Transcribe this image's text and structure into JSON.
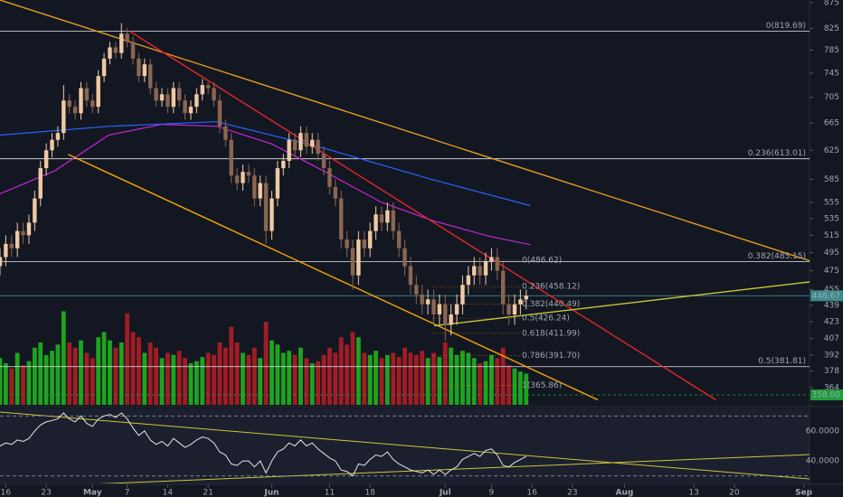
{
  "chart_data": {
    "type": "candlestick",
    "log_scale": true,
    "x": [
      15,
      16,
      17,
      18,
      19,
      20,
      21,
      22,
      23,
      24,
      25,
      26,
      27,
      28,
      29,
      30,
      31,
      32,
      33,
      34,
      35,
      36,
      37,
      38,
      39,
      40,
      41,
      42,
      43,
      44,
      45,
      46,
      47,
      48,
      49,
      50,
      51,
      52,
      53,
      54,
      55,
      56,
      57,
      58,
      59,
      60,
      61,
      62,
      63,
      64,
      65,
      66,
      67,
      68,
      69,
      70,
      71,
      72,
      73,
      74,
      75,
      76,
      77,
      78,
      79,
      80,
      81,
      82,
      83,
      84,
      85,
      86,
      87,
      88,
      89,
      90,
      91,
      92,
      93,
      94,
      95,
      96,
      97,
      98,
      99,
      100,
      101,
      102,
      103,
      104,
      105,
      106
    ],
    "open": [
      480,
      490,
      505,
      500,
      520,
      515,
      530,
      560,
      600,
      625,
      640,
      650,
      700,
      690,
      680,
      720,
      700,
      690,
      740,
      770,
      790,
      780,
      815,
      800,
      770,
      740,
      760,
      720,
      700,
      710,
      690,
      720,
      700,
      680,
      690,
      710,
      725,
      720,
      700,
      660,
      640,
      590,
      580,
      595,
      590,
      560,
      580,
      520,
      560,
      600,
      610,
      640,
      625,
      650,
      630,
      640,
      620,
      600,
      575,
      560,
      510,
      500,
      470,
      510,
      500,
      520,
      540,
      530,
      545,
      520,
      500,
      480,
      460,
      450,
      440,
      445,
      430,
      440,
      420,
      430,
      440,
      460,
      470,
      480,
      470,
      485,
      490,
      475,
      440,
      430,
      440,
      445
    ],
    "high": [
      500,
      515,
      515,
      530,
      530,
      540,
      570,
      610,
      635,
      650,
      660,
      725,
      710,
      700,
      730,
      730,
      710,
      750,
      780,
      800,
      800,
      835,
      825,
      810,
      780,
      770,
      770,
      730,
      720,
      720,
      730,
      730,
      710,
      700,
      720,
      735,
      730,
      730,
      710,
      670,
      650,
      600,
      605,
      605,
      600,
      590,
      590,
      570,
      610,
      620,
      650,
      650,
      660,
      660,
      650,
      650,
      630,
      610,
      585,
      570,
      520,
      510,
      520,
      520,
      530,
      550,
      550,
      555,
      555,
      530,
      510,
      490,
      470,
      460,
      455,
      455,
      450,
      450,
      440,
      450,
      470,
      480,
      490,
      490,
      495,
      500,
      500,
      485,
      450,
      450,
      455,
      455
    ],
    "low": [
      470,
      480,
      490,
      490,
      505,
      505,
      520,
      550,
      590,
      615,
      630,
      640,
      680,
      670,
      670,
      690,
      680,
      680,
      730,
      760,
      770,
      770,
      790,
      760,
      730,
      730,
      710,
      690,
      690,
      680,
      680,
      690,
      670,
      670,
      680,
      700,
      710,
      690,
      650,
      630,
      580,
      570,
      570,
      580,
      550,
      550,
      505,
      510,
      550,
      590,
      600,
      615,
      615,
      620,
      620,
      610,
      590,
      565,
      550,
      500,
      490,
      455,
      460,
      490,
      490,
      510,
      520,
      520,
      510,
      490,
      470,
      450,
      440,
      430,
      430,
      420,
      420,
      405,
      410,
      420,
      430,
      450,
      460,
      460,
      460,
      475,
      465,
      430,
      420,
      420,
      430,
      435
    ],
    "close": [
      490,
      505,
      500,
      520,
      515,
      530,
      560,
      600,
      625,
      640,
      650,
      700,
      690,
      680,
      720,
      700,
      690,
      740,
      770,
      790,
      780,
      815,
      800,
      770,
      740,
      760,
      720,
      700,
      710,
      690,
      720,
      700,
      680,
      690,
      710,
      725,
      720,
      700,
      660,
      640,
      590,
      580,
      595,
      590,
      560,
      580,
      520,
      560,
      600,
      610,
      640,
      625,
      650,
      630,
      640,
      620,
      600,
      575,
      560,
      510,
      500,
      470,
      510,
      500,
      520,
      540,
      530,
      545,
      520,
      500,
      480,
      460,
      450,
      440,
      445,
      430,
      440,
      420,
      430,
      440,
      460,
      470,
      480,
      470,
      485,
      490,
      475,
      440,
      430,
      440,
      445,
      448.67
    ],
    "up_color": "#efc9a4",
    "down_color": "#8a6650",
    "xlim": [
      15,
      155
    ],
    "xticks": [
      16,
      23,
      {
        "value": 31,
        "label": "May"
      },
      {
        "value": 37,
        "label": "7"
      },
      {
        "value": 44,
        "label": "14"
      },
      {
        "value": 51,
        "label": "21"
      },
      {
        "value": 62,
        "label": "Jun"
      },
      {
        "value": 72,
        "label": "11"
      },
      {
        "value": 79,
        "label": "18"
      },
      {
        "value": 92,
        "label": "Jul"
      },
      {
        "value": 100,
        "label": "9"
      },
      {
        "value": 107,
        "label": "16"
      },
      {
        "value": 114,
        "label": "23"
      },
      {
        "value": 123,
        "label": "Aug"
      },
      {
        "value": 135,
        "label": "13"
      },
      {
        "value": 142,
        "label": "20"
      },
      {
        "value": 154,
        "label": "Sep"
      }
    ],
    "ylim": [
      350,
      880
    ],
    "yticks": [
      875,
      825,
      785,
      745,
      705,
      665,
      625,
      585,
      555,
      535,
      515,
      495,
      475,
      455,
      439,
      423,
      407,
      392,
      378,
      364
    ],
    "volume": {
      "ylim": [
        0,
        100
      ],
      "up_color": "#1fa31f",
      "down_color": "#a11d25",
      "values": [
        45,
        40,
        35,
        50,
        38,
        42,
        55,
        60,
        48,
        52,
        58,
        90,
        60,
        55,
        62,
        50,
        45,
        65,
        70,
        62,
        55,
        60,
        88,
        70,
        65,
        50,
        60,
        55,
        45,
        50,
        48,
        52,
        45,
        40,
        42,
        46,
        50,
        48,
        60,
        55,
        75,
        60,
        50,
        48,
        55,
        45,
        80,
        62,
        58,
        50,
        52,
        48,
        55,
        45,
        40,
        42,
        48,
        55,
        50,
        65,
        58,
        70,
        65,
        50,
        48,
        52,
        45,
        48,
        50,
        46,
        55,
        50,
        48,
        52,
        45,
        50,
        46,
        60,
        55,
        48,
        52,
        50,
        45,
        40,
        42,
        48,
        45,
        55,
        38,
        35,
        32,
        30
      ]
    },
    "overlays": [
      {
        "color": "#c026d3",
        "x": [
          15,
          24.4,
          33.8,
          43,
          52.5,
          62,
          71,
          81,
          90,
          99.5,
          106.7
        ],
        "values": [
          566,
          596,
          647,
          663,
          660,
          634,
          596,
          555,
          532,
          514,
          504
        ]
      },
      {
        "color": "#2962ff",
        "x": [
          15,
          33.8,
          52.5,
          71,
          90,
          106.7
        ],
        "values": [
          647,
          660,
          667,
          628,
          584,
          551
        ]
      }
    ],
    "trend_lines": [
      {
        "color": "#e69b1e",
        "x": [
          15,
          155
        ],
        "values": [
          880,
          486
        ]
      },
      {
        "color": "#e0262b",
        "x": [
          37.4,
          138.8
        ],
        "values": [
          819.7,
          354
        ]
      },
      {
        "color": "#f7a600",
        "x": [
          26.8,
          118.4
        ],
        "values": [
          619,
          354
        ]
      },
      {
        "color": "#c8c83a",
        "x": [
          90.1,
          155
        ],
        "values": [
          419,
          463
        ]
      }
    ],
    "fib": {
      "color": "#e8e8e8",
      "levels": [
        819.69,
        613.01,
        485.15,
        381.81
      ],
      "labels": [
        "0(819.69)",
        "0.236(613.01)",
        "0.382(485.15)",
        "0.5(381.81)"
      ]
    },
    "fib_ext": {
      "color": "#ff9800",
      "levels": [
        486.62,
        458.12,
        440.49,
        426.24,
        411.99,
        391.7,
        365.86
      ],
      "labels": [
        "0(486.62)",
        "0.236(458.12)",
        "0.382(440.49)",
        "0.5(426.24)",
        "0.618(411.99)",
        "0.786(391.70)",
        "1(365.86)"
      ]
    },
    "last_price": {
      "value": 448.67,
      "label": "448.67",
      "color": "#3d8b8b"
    },
    "alert": {
      "value": 358,
      "label": "358.00",
      "color": "#1e9e3c"
    },
    "rsi": {
      "color": "#e6e6e6",
      "ylim": [
        25,
        75
      ],
      "yticks": [
        {
          "value": 60,
          "label": "60.0000"
        },
        {
          "value": 40,
          "label": "40.0000"
        }
      ],
      "levels": [
        70,
        30
      ],
      "values": [
        50,
        52,
        51,
        54,
        53,
        55,
        60,
        64,
        66,
        67,
        68,
        72,
        68,
        66,
        70,
        65,
        63,
        68,
        70,
        71,
        69,
        72,
        68,
        62,
        57,
        60,
        54,
        51,
        53,
        50,
        55,
        52,
        49,
        51,
        54,
        56,
        55,
        52,
        46,
        44,
        38,
        37,
        40,
        40,
        36,
        40,
        32,
        40,
        46,
        48,
        52,
        50,
        54,
        50,
        52,
        48,
        45,
        42,
        40,
        34,
        33,
        30,
        38,
        37,
        41,
        44,
        43,
        46,
        41,
        38,
        36,
        34,
        33,
        32,
        34,
        31,
        34,
        31,
        34,
        36,
        41,
        43,
        45,
        43,
        47,
        48,
        44,
        37,
        36,
        39,
        41,
        43
      ]
    }
  }
}
